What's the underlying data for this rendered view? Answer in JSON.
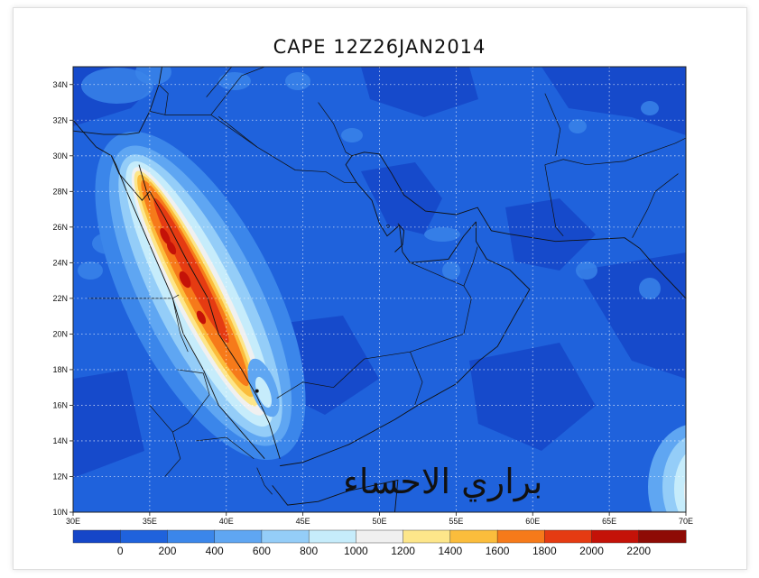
{
  "title": "CAPE 12Z26JAN2014",
  "watermark": "براري الاحساء",
  "map": {
    "lon_range": [
      30,
      70
    ],
    "lat_range": [
      10,
      35
    ],
    "lon_ticks": [
      "30E",
      "35E",
      "40E",
      "45E",
      "50E",
      "55E",
      "60E",
      "65E",
      "70E"
    ],
    "lat_ticks": [
      "10N",
      "12N",
      "14N",
      "16N",
      "18N",
      "20N",
      "22N",
      "24N",
      "26N",
      "28N",
      "30N",
      "32N",
      "34N"
    ],
    "background_color": "#1f62dc",
    "grid": "dotted"
  },
  "colorbar": {
    "labels": [
      "0",
      "200",
      "400",
      "600",
      "800",
      "1000",
      "1200",
      "1400",
      "1600",
      "1800",
      "2000",
      "2200"
    ],
    "colors": [
      "#1546c8",
      "#1f62dc",
      "#3b86ea",
      "#5fa6f2",
      "#94cdf8",
      "#c6ecfb",
      "#f0f0f0",
      "#fde68a",
      "#fbbd3c",
      "#f67a1a",
      "#e53b12",
      "#c41208",
      "#8e0b05"
    ]
  }
}
